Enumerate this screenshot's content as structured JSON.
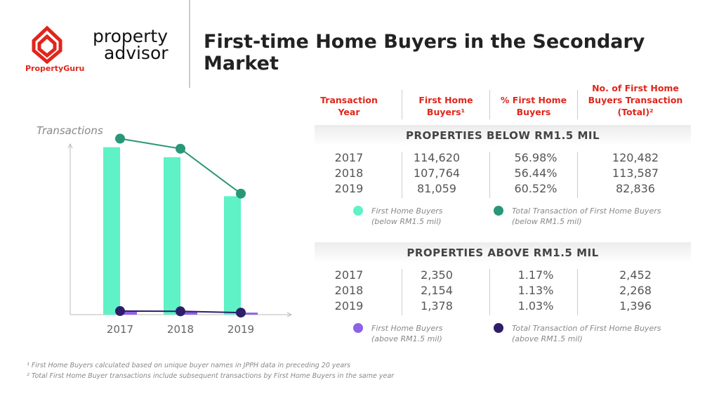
{
  "logos": {
    "brand": "PropertyGuru",
    "advisor_top": "property",
    "advisor_bottom": "advisor"
  },
  "chart_data": {
    "type": "combo",
    "title": "First-time Home Buyers in the Secondary Market",
    "ylabel": "Transactions",
    "categories": [
      "2017",
      "2018",
      "2019"
    ],
    "ylim": [
      0,
      125000
    ],
    "series": [
      {
        "name": "First Home Buyers (below RM1.5 mil)",
        "type": "bar",
        "color": "#5ef2c6",
        "values": [
          114620,
          107764,
          81059
        ],
        "value_labels": [
          "114,620",
          "107,764",
          "81,059"
        ]
      },
      {
        "name": "Total Transaction of First Home Buyers (below RM1.5 mil)",
        "type": "line",
        "color": "#2a9678",
        "values": [
          120482,
          113587,
          82836
        ],
        "value_labels": [
          "120,482",
          "113,587",
          "82,836"
        ]
      },
      {
        "name": "First Home Buyers (above RM1.5 mil)",
        "type": "bar",
        "color": "#8e62e6",
        "values": [
          2350,
          2154,
          1378
        ],
        "value_labels": [
          "2,350",
          "2,154",
          "1,378"
        ]
      },
      {
        "name": "Total Transaction of First Home Buyers (above RM1.5 mil)",
        "type": "line",
        "color": "#2e1d6a",
        "values": [
          2452,
          2268,
          1396
        ],
        "value_labels": [
          "2,452",
          "2,268",
          "1,396"
        ]
      }
    ]
  },
  "table": {
    "headers": [
      "Transaction Year",
      "First Home Buyers¹",
      "% First Home Buyers",
      "No. of First Home Buyers Transaction (Total)²"
    ],
    "sections": [
      {
        "title": "PROPERTIES BELOW RM1.5 MIL",
        "percent": [
          "56.98%",
          "56.44%",
          "60.52%"
        ]
      },
      {
        "title": "PROPERTIES ABOVE RM1.5 MIL",
        "percent": [
          "1.17%",
          "1.13%",
          "1.03%"
        ]
      }
    ]
  },
  "footnotes": [
    "¹ First Home Buyers calculated based on unique buyer names in JPPH data in preceding 20 years",
    "² Total First Home Buyer transactions include subsequent transactions by First Home Buyers in the same year"
  ]
}
